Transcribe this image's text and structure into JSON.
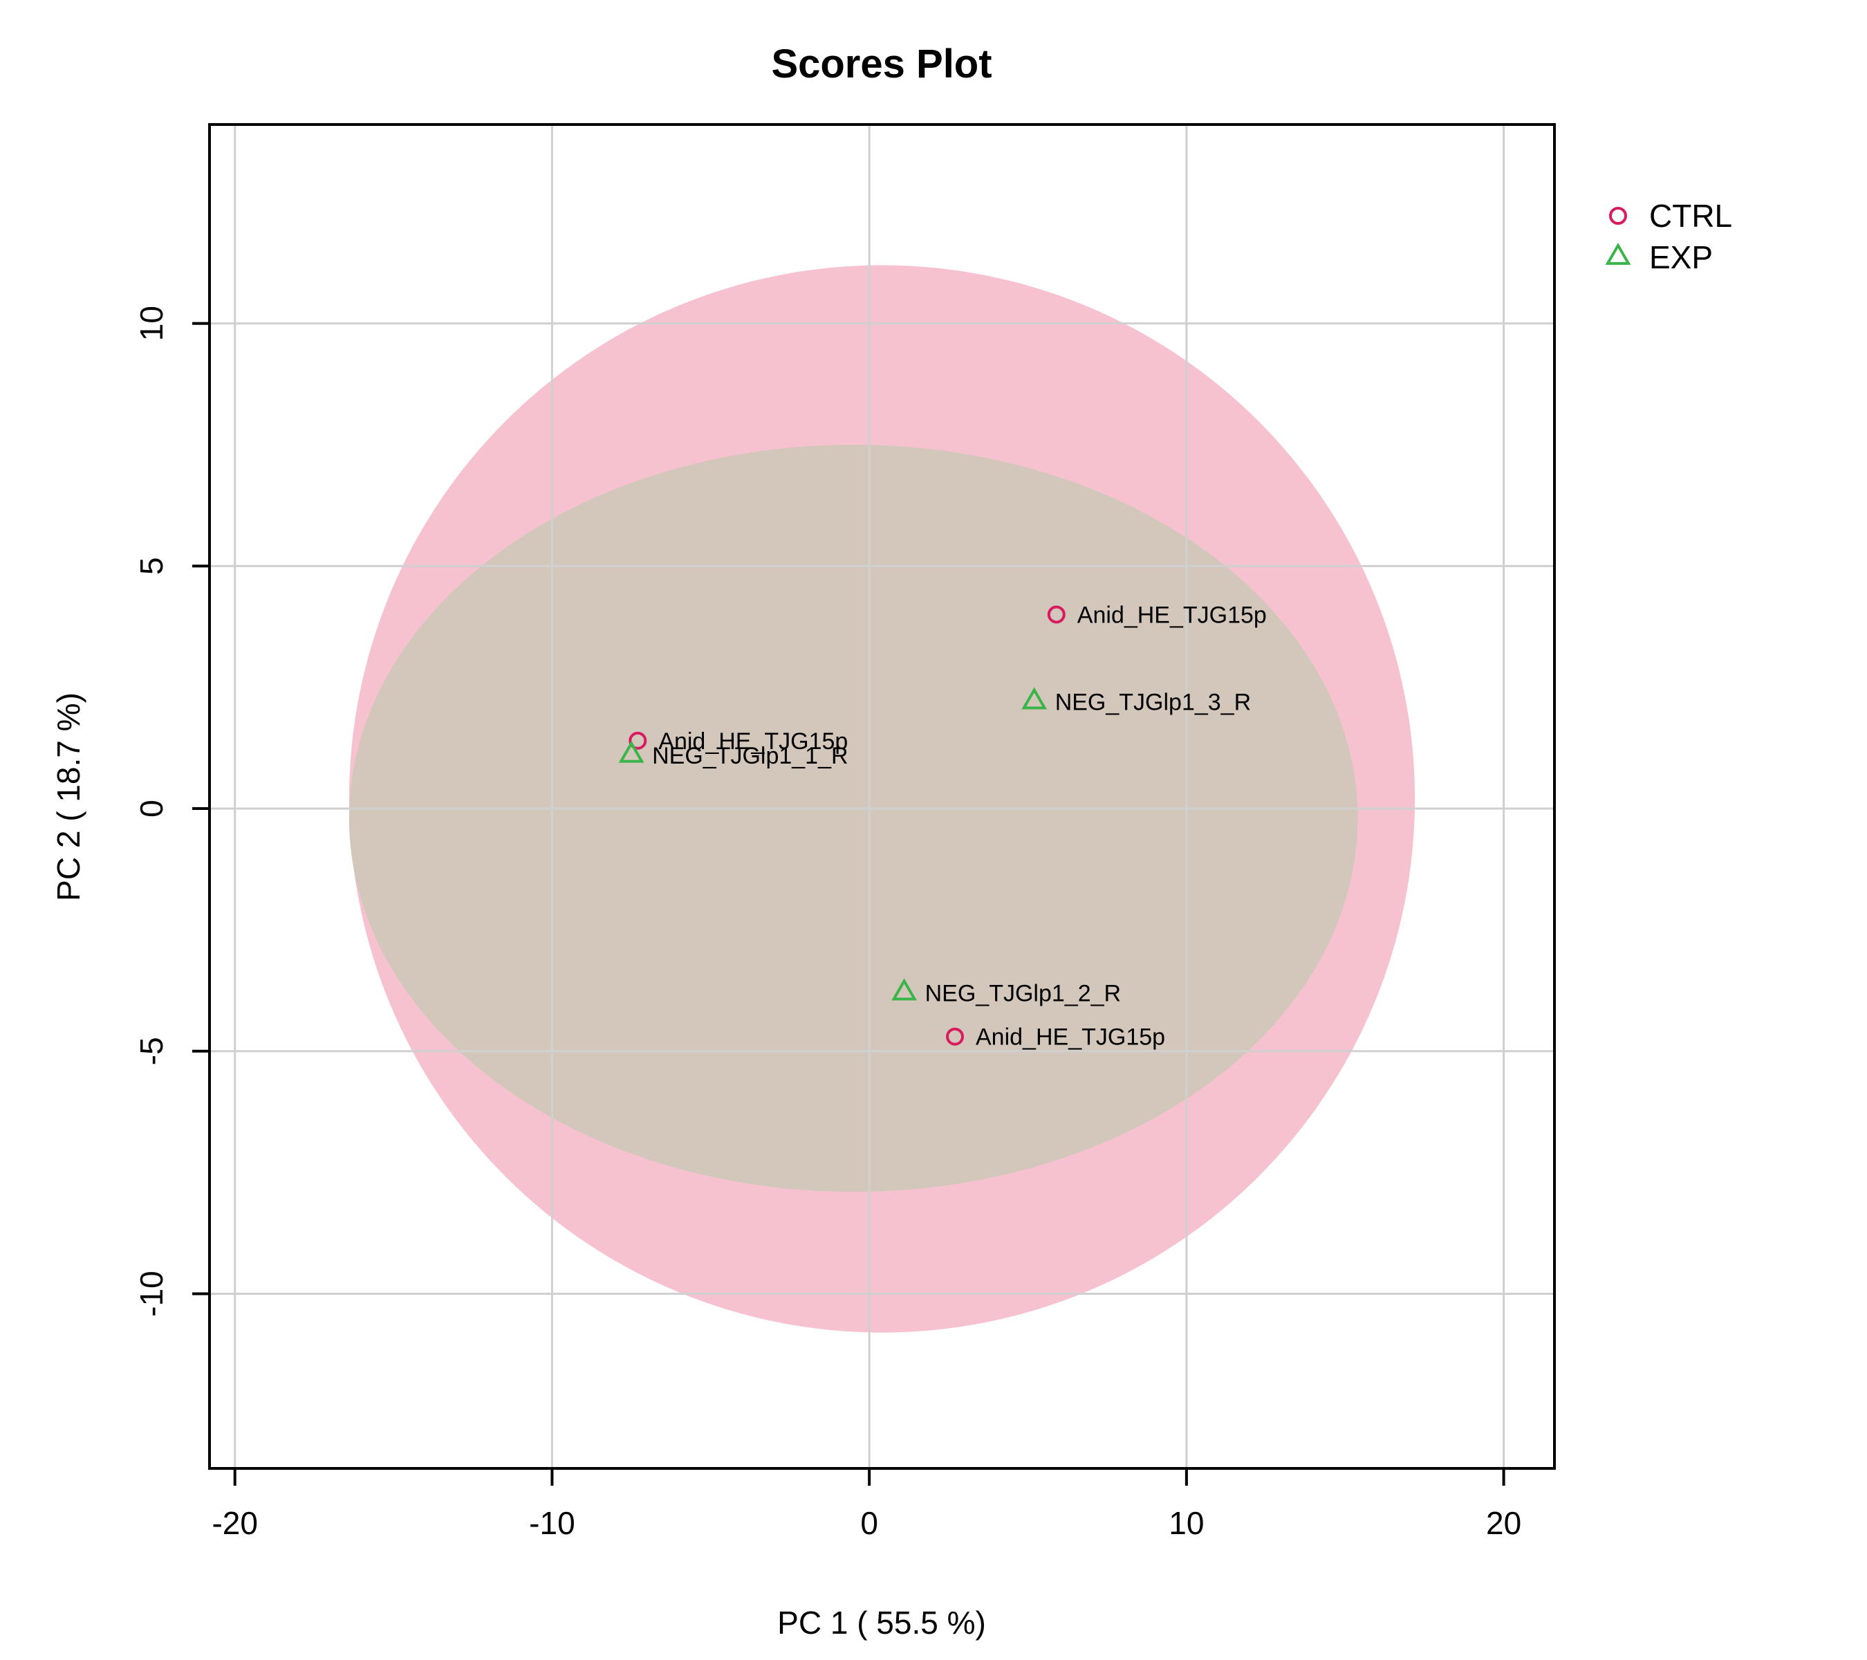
{
  "chart_data": {
    "type": "scatter",
    "title": "Scores Plot",
    "xlabel": "PC 1 ( 55.5 %)",
    "ylabel": "PC 2 ( 18.7 %)",
    "xlim": [
      -20.8,
      21.6
    ],
    "ylim": [
      -13.6,
      14.1
    ],
    "x_ticks": [
      -20,
      -10,
      0,
      10,
      20
    ],
    "y_ticks": [
      -10,
      -5,
      0,
      5,
      10
    ],
    "grid": true,
    "legend_position": "right-top",
    "series": [
      {
        "name": "CTRL",
        "marker": "circle",
        "color": "#d81b60",
        "ellipse": {
          "cx": 0.4,
          "cy": 0.2,
          "rx": 16.8,
          "ry": 11.0,
          "fill": "#f7c2d0"
        },
        "points": [
          {
            "x": 5.9,
            "y": 4.0,
            "label": "Anid_HE_TJG15p"
          },
          {
            "x": -7.3,
            "y": 1.4,
            "label": "Anid_HE_TJG15p"
          },
          {
            "x": 2.7,
            "y": -4.7,
            "label": "Anid_HE_TJG15p"
          }
        ]
      },
      {
        "name": "EXP",
        "marker": "triangle",
        "color": "#3bb54a",
        "ellipse": {
          "cx": -0.5,
          "cy": -0.2,
          "rx": 15.9,
          "ry": 7.7,
          "fill": "#d3c7bb"
        },
        "points": [
          {
            "x": 5.2,
            "y": 2.2,
            "label": "NEG_TJGlp1_3_R"
          },
          {
            "x": -7.5,
            "y": 1.1,
            "label": "NEG_TJGlp1_1_R"
          },
          {
            "x": 1.1,
            "y": -3.8,
            "label": "NEG_TJGlp1_2_R"
          }
        ]
      }
    ]
  }
}
